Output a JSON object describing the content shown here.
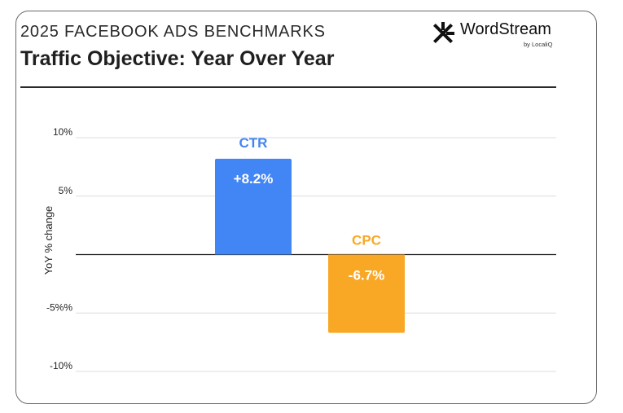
{
  "header": {
    "eyebrow": "2025 FACEBOOK ADS BENCHMARKS",
    "title": "Traffic Objective: Year Over Year"
  },
  "brand": {
    "name": "WordStream",
    "sub": "by LocaliQ"
  },
  "chart_data": {
    "type": "bar",
    "categories": [
      "CTR",
      "CPC"
    ],
    "values": [
      8.2,
      -6.7
    ],
    "value_labels": [
      "+8.2%",
      "-6.7%"
    ],
    "colors": [
      "#4285f4",
      "#f9a825"
    ],
    "ylabel": "YoY % change",
    "ylim": [
      -10,
      10
    ],
    "yticks": [
      {
        "value": 10,
        "label": "10%"
      },
      {
        "value": 5,
        "label": "5%"
      },
      {
        "value": -5,
        "label": "-5%%"
      },
      {
        "value": -10,
        "label": "-10%"
      }
    ],
    "grid": true
  }
}
